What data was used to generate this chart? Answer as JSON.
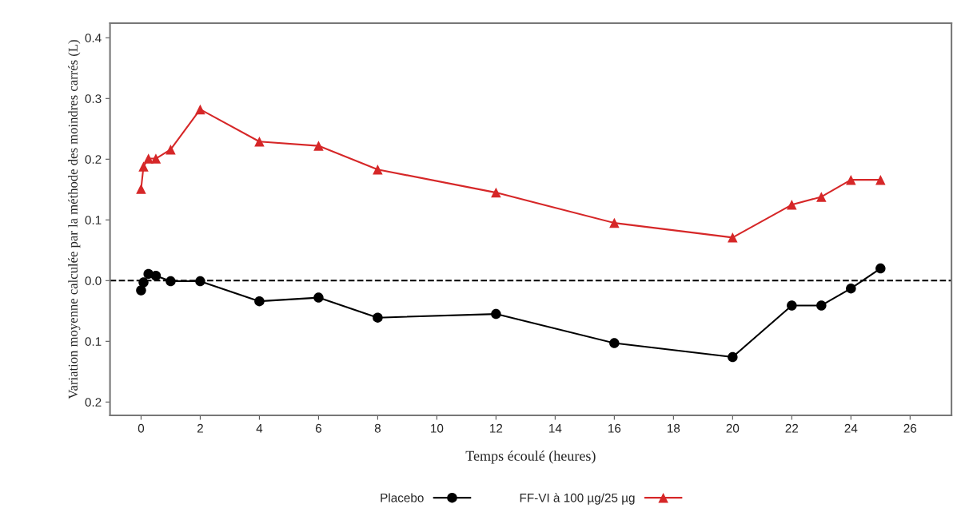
{
  "chart_data": {
    "type": "line",
    "xlabel": "Temps écoulé (heures)",
    "ylabel": "Variation moyenne calculée par la méthode des moindres carrés (L)",
    "x": [
      0,
      0.083,
      0.25,
      0.5,
      1,
      2,
      4,
      6,
      8,
      12,
      16,
      20,
      22,
      23,
      24,
      25
    ],
    "series": [
      {
        "name": "Placebo",
        "color": "#000000",
        "marker": "circle",
        "values": [
          -0.016,
          -0.003,
          0.011,
          0.008,
          -0.001,
          -0.001,
          -0.034,
          -0.028,
          -0.061,
          -0.055,
          -0.103,
          -0.126,
          -0.041,
          -0.041,
          -0.013,
          0.02
        ]
      },
      {
        "name": "FF-VI à 100 µg/25 µg",
        "color": "#d62728",
        "marker": "triangle",
        "values": [
          0.151,
          0.188,
          0.201,
          0.201,
          0.216,
          0.282,
          0.229,
          0.222,
          0.183,
          0.145,
          0.095,
          0.071,
          0.125,
          0.138,
          0.166,
          0.166
        ]
      }
    ],
    "xlim": [
      -1.05,
      27.4
    ],
    "xticks": [
      0,
      2,
      4,
      6,
      8,
      10,
      12,
      14,
      16,
      18,
      20,
      22,
      24,
      26
    ],
    "ylim": [
      -0.222,
      0.424
    ],
    "yticks": [
      {
        "value": -0.2,
        "label": "0.2"
      },
      {
        "value": -0.1,
        "label": "0.1"
      },
      {
        "value": 0,
        "label": "0.0"
      },
      0.1,
      0.2,
      0.3,
      0.4
    ],
    "ref_lines": [
      {
        "axis": "y",
        "value": 0,
        "color": "#000000",
        "line_style": "dashed"
      }
    ],
    "grid": false,
    "legend": "bottom",
    "line_style": "solid"
  }
}
